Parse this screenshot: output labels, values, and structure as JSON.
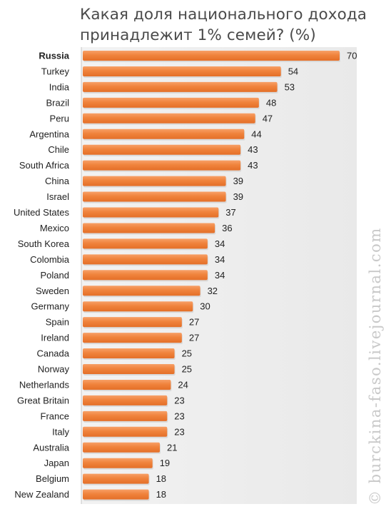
{
  "title": "Какая доля национального дохода принадлежит 1% семей? (%)",
  "watermark": "© burckina-faso.livejournal.com",
  "colors": {
    "bar": "#f0833c",
    "bar_shadow": "#d9d9d9",
    "panel": "#efefef",
    "axis": "#c7c7c7",
    "label": "#222222"
  },
  "chart_data": {
    "type": "bar",
    "orientation": "horizontal",
    "title": "Какая доля национального дохода принадлежит 1% семей? (%)",
    "xlabel": "",
    "ylabel": "",
    "xlim": [
      0,
      70
    ],
    "grid": false,
    "highlight_category": "Russia",
    "categories": [
      "Russia",
      "Turkey",
      "India",
      "Brazil",
      "Peru",
      "Argentina",
      "Chile",
      "South Africa",
      "China",
      "Israel",
      "United States",
      "Mexico",
      "South Korea",
      "Colombia",
      "Poland",
      "Sweden",
      "Germany",
      "Spain",
      "Ireland",
      "Canada",
      "Norway",
      "Netherlands",
      "Great Britain",
      "France",
      "Italy",
      "Australia",
      "Japan",
      "Belgium",
      "New Zealand"
    ],
    "values": [
      70,
      54,
      53,
      48,
      47,
      44,
      43,
      43,
      39,
      39,
      37,
      36,
      34,
      34,
      34,
      32,
      30,
      27,
      27,
      25,
      25,
      24,
      23,
      23,
      23,
      21,
      19,
      18,
      18
    ]
  }
}
